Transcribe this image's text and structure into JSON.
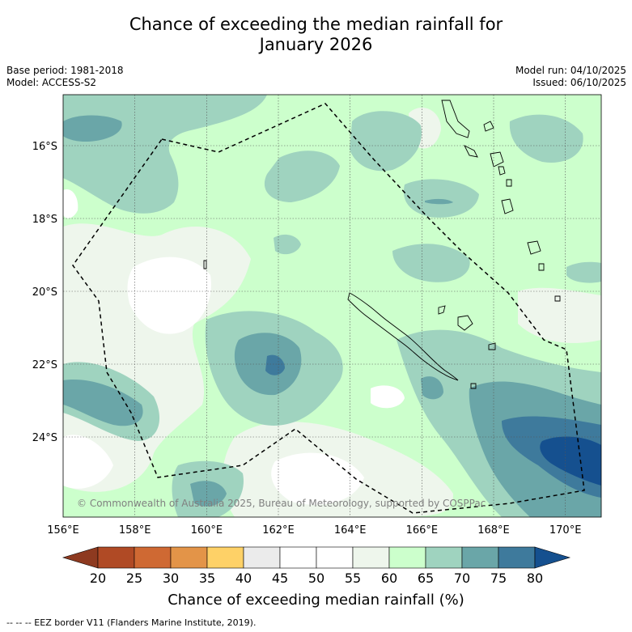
{
  "title_line1": "Chance of exceeding the median rainfall for",
  "title_line2": "January 2026",
  "base_period": "Base period: 1981-2018",
  "model": "Model: ACCESS-S2",
  "model_run": "Model run: 04/10/2025",
  "issued": "Issued: 06/10/2025",
  "map": {
    "lon_range": [
      156,
      171
    ],
    "lat_range": [
      -26.2,
      -14.6
    ],
    "lon_ticks": [
      156,
      158,
      160,
      162,
      164,
      166,
      168,
      170
    ],
    "lon_labels": [
      "156°E",
      "158°E",
      "160°E",
      "162°E",
      "164°E",
      "166°E",
      "168°E",
      "170°E"
    ],
    "lat_ticks": [
      -16,
      -18,
      -20,
      -22,
      -24
    ],
    "lat_labels": [
      "16°S",
      "18°S",
      "20°S",
      "22°S",
      "24°S"
    ],
    "copyright": "© Commonwealth of Australia 2025, Bureau of Meteorology, supported by COSPPac"
  },
  "colorbar": {
    "ticks": [
      "20",
      "25",
      "30",
      "35",
      "40",
      "45",
      "50",
      "55",
      "60",
      "65",
      "70",
      "75",
      "80"
    ],
    "colors": [
      "#b04a25",
      "#cf6933",
      "#e39448",
      "#fed167",
      "#ebebeb",
      "#ffffff",
      "#ffffff",
      "#eef6ec",
      "#ccffcc",
      "#9fd3bf",
      "#6aa6a8",
      "#3e7a9c"
    ],
    "under_color": "#8e3a20",
    "over_color": "#15508f",
    "label": "Chance of exceeding median rainfall (%)"
  },
  "footnote": "--  --  -- EEZ border V11 (Flanders Marine Institute, 2019)."
}
